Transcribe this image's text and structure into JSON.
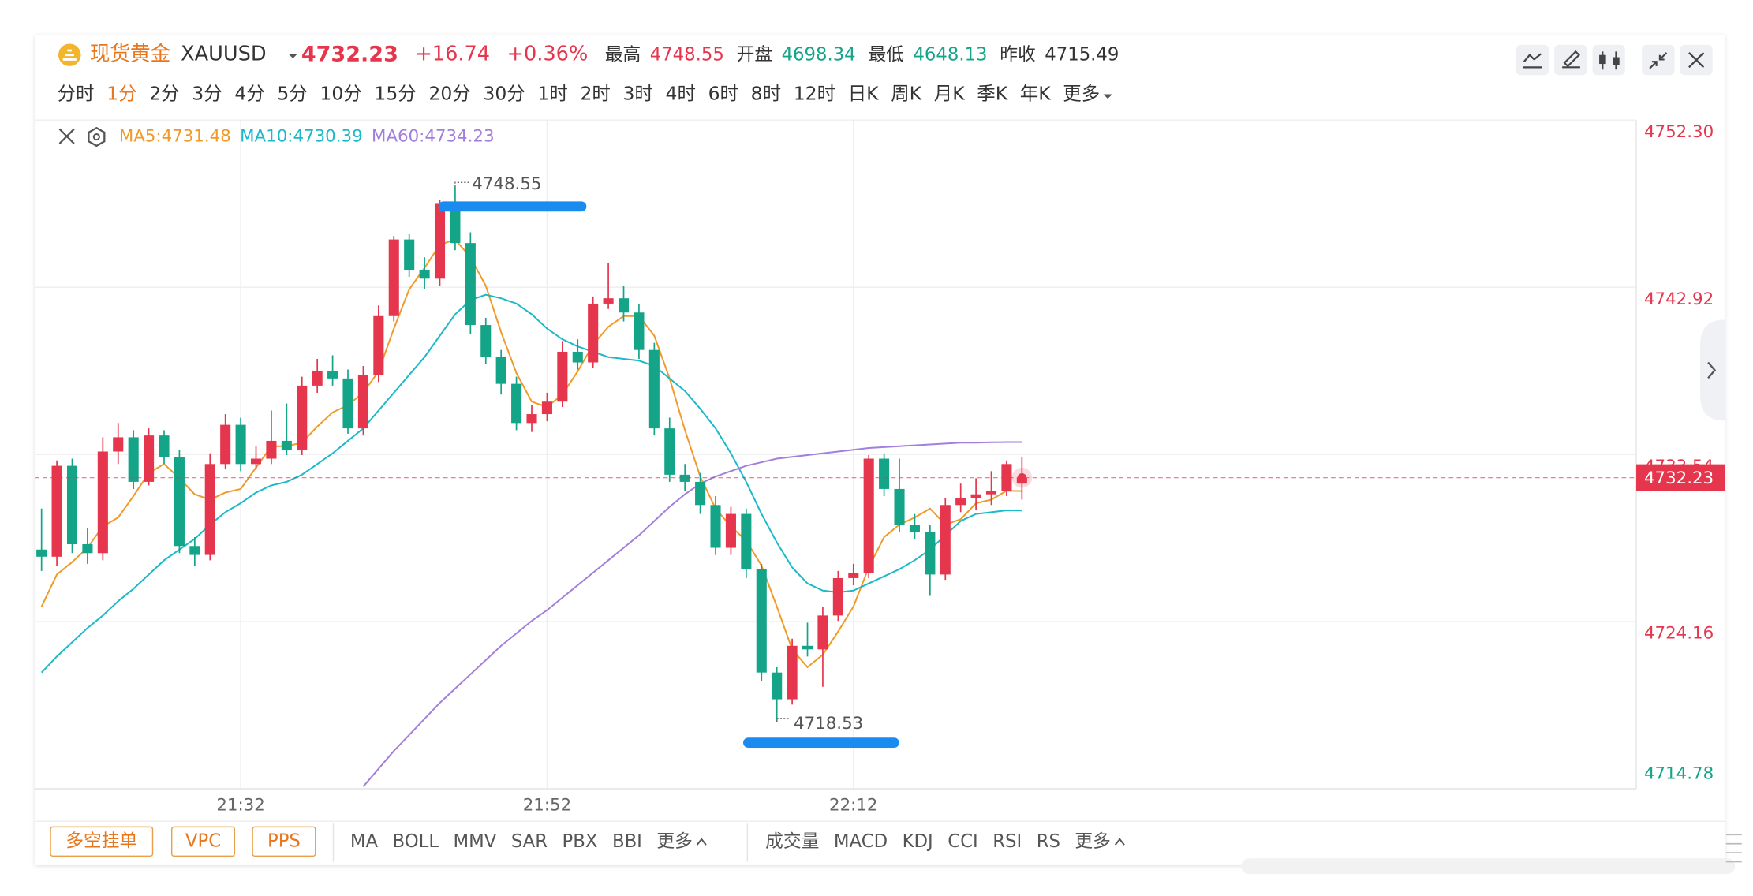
{
  "header": {
    "name": "现货黄金",
    "symbol": "XAUUSD",
    "price": "4732.23",
    "change": "+16.74",
    "change_pct": "+0.36%",
    "high_label": "最高",
    "high": "4748.55",
    "open_label": "开盘",
    "open": "4698.34",
    "low_label": "最低",
    "low": "4648.13",
    "prev_close_label": "昨收",
    "prev_close": "4715.49"
  },
  "periods": [
    "分时",
    "1分",
    "2分",
    "3分",
    "4分",
    "5分",
    "10分",
    "15分",
    "20分",
    "30分",
    "1时",
    "2时",
    "3时",
    "4时",
    "6时",
    "8时",
    "12时",
    "日K",
    "周K",
    "月K",
    "季K",
    "年K",
    "更多"
  ],
  "active_period_index": 1,
  "buttons": [
    "多空挂单",
    "VPC",
    "PPS"
  ],
  "main_indicators": [
    "MA",
    "BOLL",
    "MMV",
    "SAR",
    "PBX",
    "BBI",
    "更多"
  ],
  "sub_indicators": [
    "成交量",
    "MACD",
    "KDJ",
    "CCI",
    "RSI",
    "RS",
    "更多"
  ],
  "chart_data": {
    "type": "candlestick",
    "categories": [
      null,
      null,
      null,
      null,
      null,
      null,
      null,
      null,
      null,
      null,
      null,
      null,
      null,
      "21:32",
      null,
      null,
      null,
      null,
      null,
      null,
      null,
      null,
      null,
      null,
      null,
      null,
      null,
      null,
      null,
      null,
      null,
      null,
      null,
      "21:52",
      null,
      null,
      null,
      null,
      null,
      null,
      null,
      null,
      null,
      null,
      null,
      null,
      null,
      null,
      null,
      null,
      null,
      null,
      null,
      "22:12",
      null,
      null,
      null,
      null,
      null,
      null,
      null,
      null,
      null,
      null,
      null
    ],
    "open": [
      4728.2,
      4727.8,
      4732.9,
      4728.5,
      4728.0,
      4733.7,
      4734.5,
      4732.0,
      4734.6,
      4733.4,
      4728.4,
      4727.9,
      4733.0,
      4735.2,
      4733.0,
      4733.3,
      4734.3,
      4733.8,
      4737.4,
      4738.2,
      4737.8,
      4735.0,
      4738.0,
      4741.3,
      4745.6,
      4743.9,
      4743.4,
      4747.6,
      4745.4,
      4740.8,
      4739.0,
      4737.5,
      4735.3,
      4735.8,
      4736.5,
      4739.3,
      4738.7,
      4742.0,
      4742.3,
      4741.5,
      4739.4,
      4735.0,
      4732.4,
      4732.0,
      4730.7,
      4728.3,
      4730.2,
      4727.1,
      4721.3,
      4719.8,
      4722.8,
      4722.6,
      4724.5,
      4726.6,
      4726.9,
      4733.3,
      4731.6,
      4729.6,
      4729.2,
      4726.8,
      4730.7,
      4731.1,
      4731.3,
      4731.5,
      4731.9
    ],
    "high": [
      4730.5,
      4733.2,
      4733.3,
      4729.4,
      4734.5,
      4735.3,
      4734.9,
      4735.0,
      4734.9,
      4733.8,
      4728.9,
      4733.6,
      4735.8,
      4735.6,
      4734.0,
      4736.0,
      4736.4,
      4737.9,
      4738.9,
      4739.1,
      4738.3,
      4738.5,
      4741.9,
      4745.8,
      4745.9,
      4744.6,
      4747.8,
      4748.55,
      4746.0,
      4741.2,
      4739.4,
      4737.9,
      4736.3,
      4737.0,
      4739.9,
      4740.0,
      4742.4,
      4744.3,
      4743.0,
      4742.0,
      4739.8,
      4735.6,
      4733.0,
      4732.5,
      4731.2,
      4730.6,
      4730.5,
      4727.4,
      4721.6,
      4723.2,
      4724.1,
      4725.0,
      4727.0,
      4727.4,
      4733.5,
      4733.6,
      4733.3,
      4730.2,
      4729.6,
      4731.1,
      4731.9,
      4732.2,
      4732.6,
      4733.2,
      4733.4
    ],
    "low": [
      4727.0,
      4727.3,
      4728.0,
      4727.4,
      4727.6,
      4733.0,
      4731.6,
      4731.8,
      4733.0,
      4728.0,
      4727.3,
      4727.6,
      4732.7,
      4732.6,
      4732.7,
      4733.0,
      4733.5,
      4733.5,
      4737.0,
      4737.4,
      4734.7,
      4734.6,
      4737.6,
      4741.0,
      4743.5,
      4742.8,
      4743.0,
      4745.0,
      4740.3,
      4738.6,
      4736.9,
      4734.9,
      4734.8,
      4735.4,
      4736.2,
      4738.3,
      4738.4,
      4741.7,
      4741.0,
      4738.9,
      4734.6,
      4732.0,
      4731.5,
      4730.2,
      4727.9,
      4727.9,
      4726.6,
      4720.8,
      4718.53,
      4719.5,
      4722.2,
      4720.5,
      4724.2,
      4726.2,
      4726.6,
      4731.2,
      4729.2,
      4728.8,
      4725.6,
      4726.5,
      4730.3,
      4730.4,
      4730.7,
      4731.2,
      4731.0
    ],
    "close": [
      4727.8,
      4732.9,
      4728.5,
      4728.0,
      4733.7,
      4734.5,
      4732.0,
      4734.6,
      4733.4,
      4728.4,
      4727.9,
      4733.0,
      4735.2,
      4733.0,
      4733.3,
      4734.3,
      4733.8,
      4737.4,
      4738.2,
      4737.8,
      4735.0,
      4738.0,
      4741.3,
      4745.6,
      4743.9,
      4743.4,
      4747.6,
      4745.4,
      4740.8,
      4739.0,
      4737.5,
      4735.3,
      4735.8,
      4736.5,
      4739.3,
      4738.7,
      4742.0,
      4742.3,
      4741.5,
      4739.4,
      4735.0,
      4732.4,
      4732.0,
      4730.7,
      4728.3,
      4730.2,
      4727.1,
      4721.3,
      4719.8,
      4722.8,
      4722.6,
      4724.5,
      4726.6,
      4726.9,
      4733.3,
      4731.6,
      4729.6,
      4729.2,
      4726.8,
      4730.7,
      4731.1,
      4731.3,
      4731.5,
      4733.0,
      4732.23
    ],
    "up_color": "#e5364d",
    "down_color": "#14a589",
    "series": [
      {
        "name": "MA5",
        "legend_label": "MA5:4731.48",
        "color": "#f09a2a",
        "values": [
          4725.0,
          4726.8,
          4727.5,
          4728.3,
          4729.5,
          4730.0,
          4731.2,
          4732.5,
          4733.0,
          4732.2,
          4731.3,
          4731.0,
          4731.4,
          4731.6,
          4732.8,
          4734.0,
          4734.0,
          4734.2,
          4735.1,
          4735.9,
          4736.3,
          4737.0,
          4738.2,
          4740.6,
          4742.8,
          4744.0,
          4745.3,
          4745.6,
          4744.6,
          4743.0,
          4740.4,
          4738.1,
          4736.5,
          4736.2,
          4736.9,
          4738.2,
          4739.7,
          4740.7,
          4741.3,
          4741.3,
          4740.2,
          4737.8,
          4734.9,
          4732.3,
          4730.5,
          4729.5,
          4728.7,
          4727.3,
          4725.0,
          4722.6,
          4721.6,
          4722.3,
          4723.6,
          4725.0,
          4727.2,
          4728.9,
          4729.6,
          4730.0,
          4730.5,
          4729.6,
          4729.9,
          4730.8,
          4731.0,
          4731.5,
          4731.48
        ]
      },
      {
        "name": "MA10",
        "legend_label": "MA10:4730.39",
        "color": "#1cb9c8",
        "values": [
          4721.3,
          4722.2,
          4723.0,
          4723.8,
          4724.5,
          4725.3,
          4726.0,
          4726.8,
          4727.6,
          4728.2,
          4728.8,
          4729.6,
          4730.3,
          4730.8,
          4731.4,
          4731.8,
          4732.0,
          4732.4,
          4733.0,
          4733.6,
          4734.3,
          4735.0,
          4736.0,
          4737.0,
          4738.0,
          4739.0,
          4740.2,
          4741.4,
          4742.2,
          4742.5,
          4742.3,
          4742.0,
          4741.4,
          4740.6,
          4740.0,
          4739.6,
          4739.3,
          4739.0,
          4738.9,
          4738.8,
          4738.5,
          4737.8,
          4737.1,
          4736.1,
          4735.0,
          4733.6,
          4732.0,
          4730.2,
          4728.6,
          4727.2,
          4726.3,
          4725.9,
          4725.8,
          4725.9,
          4726.3,
          4726.7,
          4727.1,
          4727.6,
          4728.2,
          4729.0,
          4729.8,
          4730.2,
          4730.3,
          4730.4,
          4730.39
        ]
      },
      {
        "name": "MA60",
        "legend_label": "MA60:4734.23",
        "color": "#a27fdb",
        "values": [
          null,
          null,
          null,
          null,
          null,
          null,
          null,
          null,
          null,
          null,
          null,
          null,
          null,
          null,
          null,
          null,
          null,
          null,
          null,
          null,
          null,
          4714.9,
          4715.9,
          4716.9,
          4717.8,
          4718.7,
          4719.6,
          4720.4,
          4721.2,
          4722.0,
          4722.8,
          4723.5,
          4724.2,
          4724.8,
          4725.5,
          4726.2,
          4726.9,
          4727.6,
          4728.3,
          4729.0,
          4729.8,
          4730.6,
          4731.3,
          4731.9,
          4732.3,
          4732.6,
          4732.9,
          4733.1,
          4733.3,
          4733.4,
          4733.5,
          4733.6,
          4733.7,
          4733.8,
          4733.9,
          4733.95,
          4734.0,
          4734.05,
          4734.1,
          4734.15,
          4734.2,
          4734.2,
          4734.22,
          4734.23,
          4734.23
        ]
      }
    ],
    "ylim": [
      4714.78,
      4752.3
    ],
    "yticks": [
      4714.78,
      4724.16,
      4733.54,
      4742.92,
      {
        "value": 4752.3,
        "label": "4752.30"
      }
    ],
    "grid": true,
    "last_price": 4732.23
  }
}
